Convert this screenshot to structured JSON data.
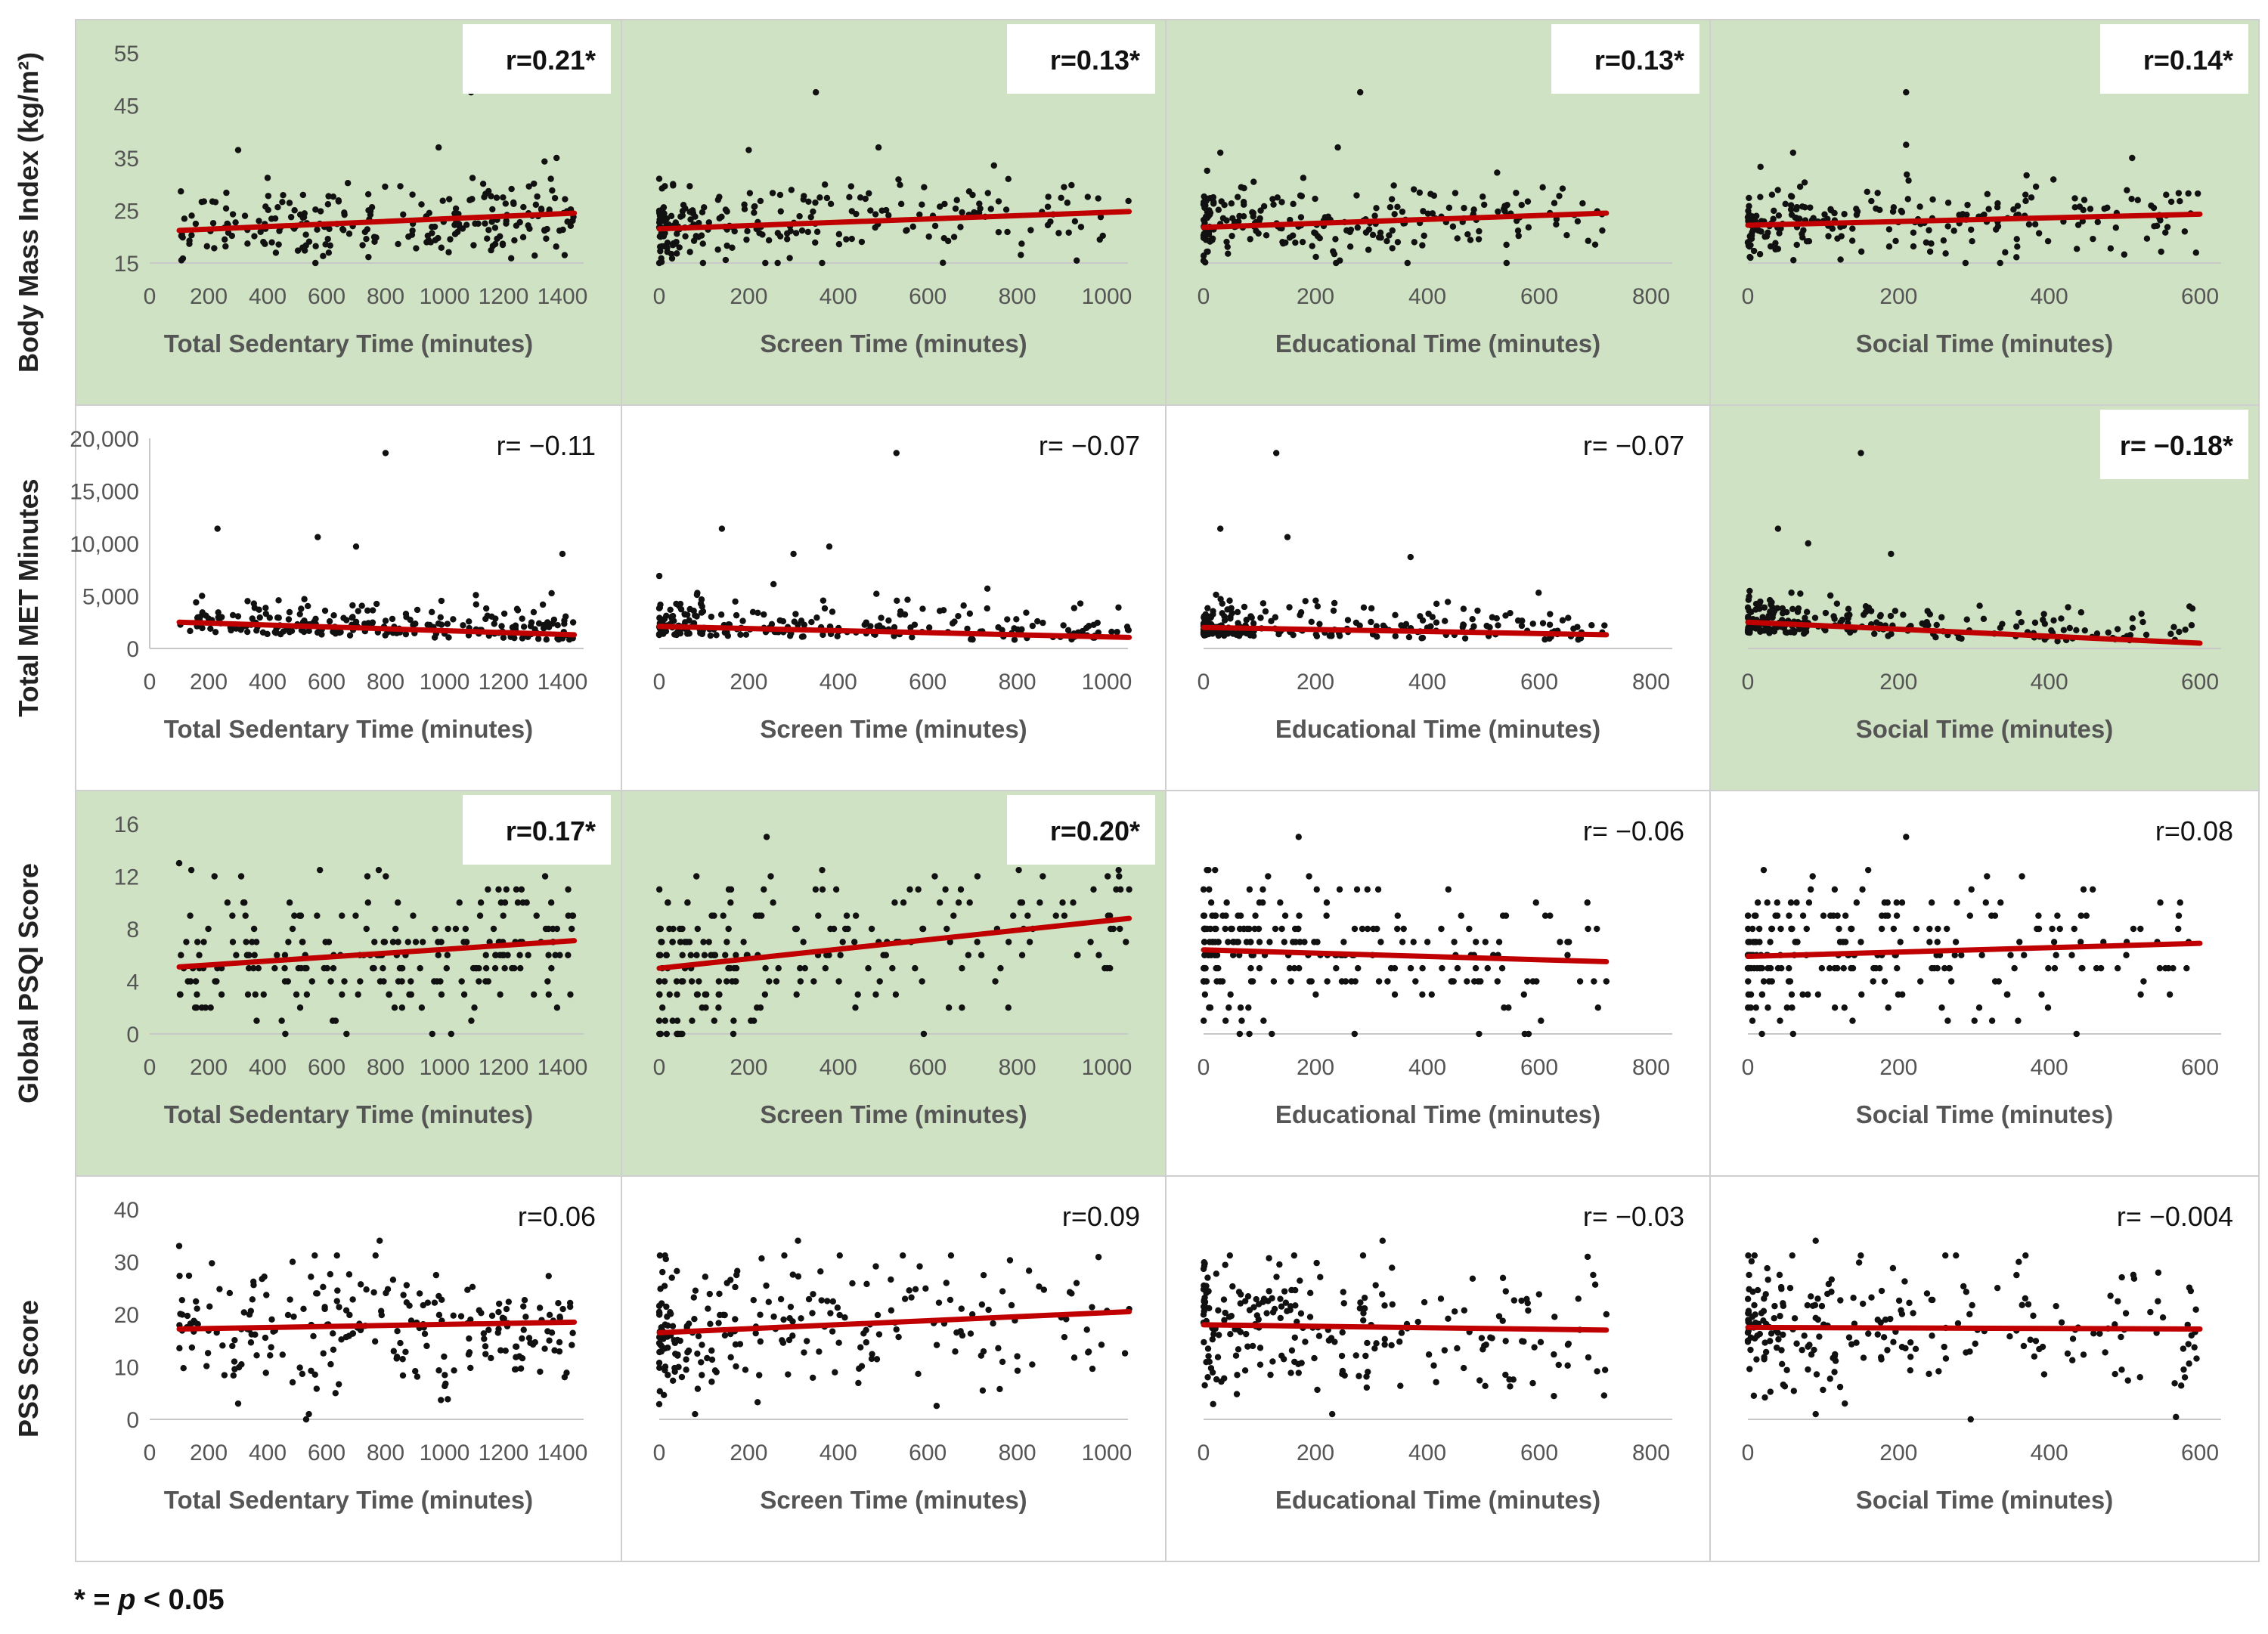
{
  "footnote": {
    "prefix": "* = ",
    "p": "p",
    "suffix": " < 0.05"
  },
  "chart_data": {
    "type": "scatter",
    "layout": "4x4 small multiples with linear fit lines",
    "colors": {
      "significant_bg": "#cfe2c3",
      "fit_line": "#c00000",
      "points": "#111111",
      "border": "#cfcfcf"
    },
    "rows": [
      {
        "label": "Body Mass Index (kg/m²)",
        "ylim": [
          15,
          55
        ],
        "yticks": [
          "15",
          "25",
          "35",
          "45",
          "55"
        ]
      },
      {
        "label": "Total MET Minutes",
        "ylim": [
          0,
          20000
        ],
        "yticks": [
          "0",
          "5,000",
          "10,000",
          "15,000",
          "20,000"
        ]
      },
      {
        "label": "Global PSQI Score",
        "ylim": [
          0,
          16
        ],
        "yticks": [
          "0",
          "4",
          "8",
          "12",
          "16"
        ]
      },
      {
        "label": "PSS Score",
        "ylim": [
          0,
          40
        ],
        "yticks": [
          "0",
          "10",
          "20",
          "30",
          "40"
        ]
      }
    ],
    "columns": [
      {
        "xlabel": "Total Sedentary Time (minutes)",
        "xlim": [
          0,
          1400
        ],
        "xticks": [
          "0",
          "200",
          "400",
          "600",
          "800",
          "1000",
          "1200",
          "1400"
        ],
        "x_range": [
          100,
          1440
        ],
        "spread": "uniform"
      },
      {
        "xlabel": "Screen Time (minutes)",
        "xlim": [
          0,
          1000
        ],
        "xticks": [
          "0",
          "200",
          "400",
          "600",
          "800",
          "1000"
        ],
        "x_range": [
          0,
          1050
        ],
        "spread": "skew"
      },
      {
        "xlabel": "Educational Time (minutes)",
        "xlim": [
          0,
          800
        ],
        "xticks": [
          "0",
          "200",
          "400",
          "600",
          "800"
        ],
        "x_range": [
          0,
          720
        ],
        "spread": "skew"
      },
      {
        "xlabel": "Social Time (minutes)",
        "xlim": [
          0,
          600
        ],
        "xticks": [
          "0",
          "200",
          "400",
          "600"
        ],
        "x_range": [
          0,
          600
        ],
        "spread": "skew"
      }
    ],
    "panels": [
      {
        "row": 0,
        "col": 0,
        "r": "r=0.21*",
        "significant": true,
        "fit": [
          [
            100,
            21.2
          ],
          [
            1440,
            24.5
          ]
        ],
        "center": 22.5,
        "sd": 3.5,
        "outliers": [
          [
            1090,
            47.5
          ],
          [
            980,
            37
          ],
          [
            300,
            36.5
          ],
          [
            1380,
            35
          ]
        ]
      },
      {
        "row": 0,
        "col": 1,
        "r": "r=0.13*",
        "significant": true,
        "fit": [
          [
            0,
            21.5
          ],
          [
            1050,
            24.8
          ]
        ],
        "center": 22.5,
        "sd": 3.5,
        "outliers": [
          [
            350,
            47.5
          ],
          [
            490,
            37
          ],
          [
            200,
            36.5
          ],
          [
            780,
            31
          ]
        ]
      },
      {
        "row": 0,
        "col": 2,
        "r": "r=0.13*",
        "significant": true,
        "fit": [
          [
            0,
            21.8
          ],
          [
            720,
            24.5
          ]
        ],
        "center": 22.5,
        "sd": 3.5,
        "outliers": [
          [
            280,
            47.5
          ],
          [
            30,
            36
          ],
          [
            240,
            37
          ],
          [
            700,
            18.5
          ]
        ]
      },
      {
        "row": 0,
        "col": 3,
        "r": "r=0.14*",
        "significant": true,
        "fit": [
          [
            0,
            22.2
          ],
          [
            600,
            24.3
          ]
        ],
        "center": 22.5,
        "sd": 3.5,
        "outliers": [
          [
            210,
            47.5
          ],
          [
            210,
            37.5
          ],
          [
            60,
            36
          ],
          [
            510,
            35
          ]
        ]
      },
      {
        "row": 1,
        "col": 0,
        "r": "r= −0.11",
        "significant": false,
        "fit": [
          [
            100,
            2500
          ],
          [
            1440,
            1300
          ]
        ],
        "center": 1900,
        "sd": 1500,
        "outliers": [
          [
            800,
            18600
          ],
          [
            230,
            11400
          ],
          [
            570,
            10600
          ],
          [
            1400,
            9000
          ],
          [
            700,
            9700
          ]
        ]
      },
      {
        "row": 1,
        "col": 1,
        "r": "r= −0.07",
        "significant": false,
        "fit": [
          [
            0,
            2100
          ],
          [
            1050,
            1050
          ]
        ],
        "center": 1800,
        "sd": 1500,
        "outliers": [
          [
            530,
            18600
          ],
          [
            140,
            11400
          ],
          [
            380,
            9700
          ],
          [
            300,
            9000
          ]
        ]
      },
      {
        "row": 1,
        "col": 2,
        "r": "r= −0.07",
        "significant": false,
        "fit": [
          [
            0,
            2000
          ],
          [
            720,
            1300
          ]
        ],
        "center": 1800,
        "sd": 1500,
        "outliers": [
          [
            130,
            18600
          ],
          [
            30,
            11400
          ],
          [
            150,
            10600
          ],
          [
            370,
            8700
          ]
        ]
      },
      {
        "row": 1,
        "col": 3,
        "r": "r= −0.18*",
        "significant": true,
        "fit": [
          [
            0,
            2500
          ],
          [
            600,
            500
          ]
        ],
        "center": 1900,
        "sd": 1500,
        "outliers": [
          [
            150,
            18600
          ],
          [
            40,
            11400
          ],
          [
            80,
            10000
          ],
          [
            190,
            9000
          ],
          [
            590,
            3800
          ]
        ]
      },
      {
        "row": 2,
        "col": 0,
        "r": "r=0.17*",
        "significant": true,
        "fit": [
          [
            100,
            5.1
          ],
          [
            1440,
            7.1
          ]
        ],
        "center": 6,
        "sd": 2.7,
        "integer": true,
        "outliers": [
          [
            100,
            13
          ],
          [
            460,
            0
          ]
        ]
      },
      {
        "row": 2,
        "col": 1,
        "r": "r=0.20*",
        "significant": true,
        "fit": [
          [
            0,
            5
          ],
          [
            1050,
            8.8
          ]
        ],
        "center": 6,
        "sd": 2.7,
        "integer": true,
        "outliers": [
          [
            240,
            15
          ],
          [
            1050,
            11
          ],
          [
            780,
            2
          ]
        ]
      },
      {
        "row": 2,
        "col": 2,
        "r": "r= −0.06",
        "significant": false,
        "fit": [
          [
            0,
            6.4
          ],
          [
            720,
            5.5
          ]
        ],
        "center": 6,
        "sd": 2.7,
        "integer": true,
        "outliers": [
          [
            170,
            15
          ],
          [
            270,
            0
          ],
          [
            720,
            4
          ]
        ]
      },
      {
        "row": 2,
        "col": 3,
        "r": "r=0.08",
        "significant": false,
        "fit": [
          [
            0,
            5.9
          ],
          [
            600,
            6.9
          ]
        ],
        "center": 6,
        "sd": 2.7,
        "integer": true,
        "outliers": [
          [
            210,
            15
          ],
          [
            60,
            0
          ],
          [
            560,
            3
          ]
        ]
      },
      {
        "row": 3,
        "col": 0,
        "r": "r=0.06",
        "significant": false,
        "fit": [
          [
            100,
            17.2
          ],
          [
            1440,
            18.5
          ]
        ],
        "center": 18,
        "sd": 6,
        "outliers": [
          [
            100,
            33
          ],
          [
            540,
            1
          ],
          [
            780,
            34
          ],
          [
            300,
            3
          ]
        ]
      },
      {
        "row": 3,
        "col": 1,
        "r": "r=0.09",
        "significant": false,
        "fit": [
          [
            0,
            16.5
          ],
          [
            1050,
            20.5
          ]
        ],
        "center": 18,
        "sd": 6,
        "outliers": [
          [
            80,
            1
          ],
          [
            310,
            34
          ],
          [
            800,
            12
          ],
          [
            1050,
            21
          ]
        ]
      },
      {
        "row": 3,
        "col": 2,
        "r": "r= −0.03",
        "significant": false,
        "fit": [
          [
            0,
            18
          ],
          [
            720,
            17
          ]
        ],
        "center": 18,
        "sd": 6,
        "outliers": [
          [
            230,
            1
          ],
          [
            320,
            34
          ],
          [
            720,
            20
          ]
        ]
      },
      {
        "row": 3,
        "col": 3,
        "r": "r= −0.004",
        "significant": false,
        "fit": [
          [
            0,
            17.5
          ],
          [
            600,
            17.2
          ]
        ],
        "center": 18,
        "sd": 6,
        "outliers": [
          [
            90,
            1
          ],
          [
            90,
            34
          ],
          [
            580,
            8
          ]
        ]
      }
    ]
  }
}
